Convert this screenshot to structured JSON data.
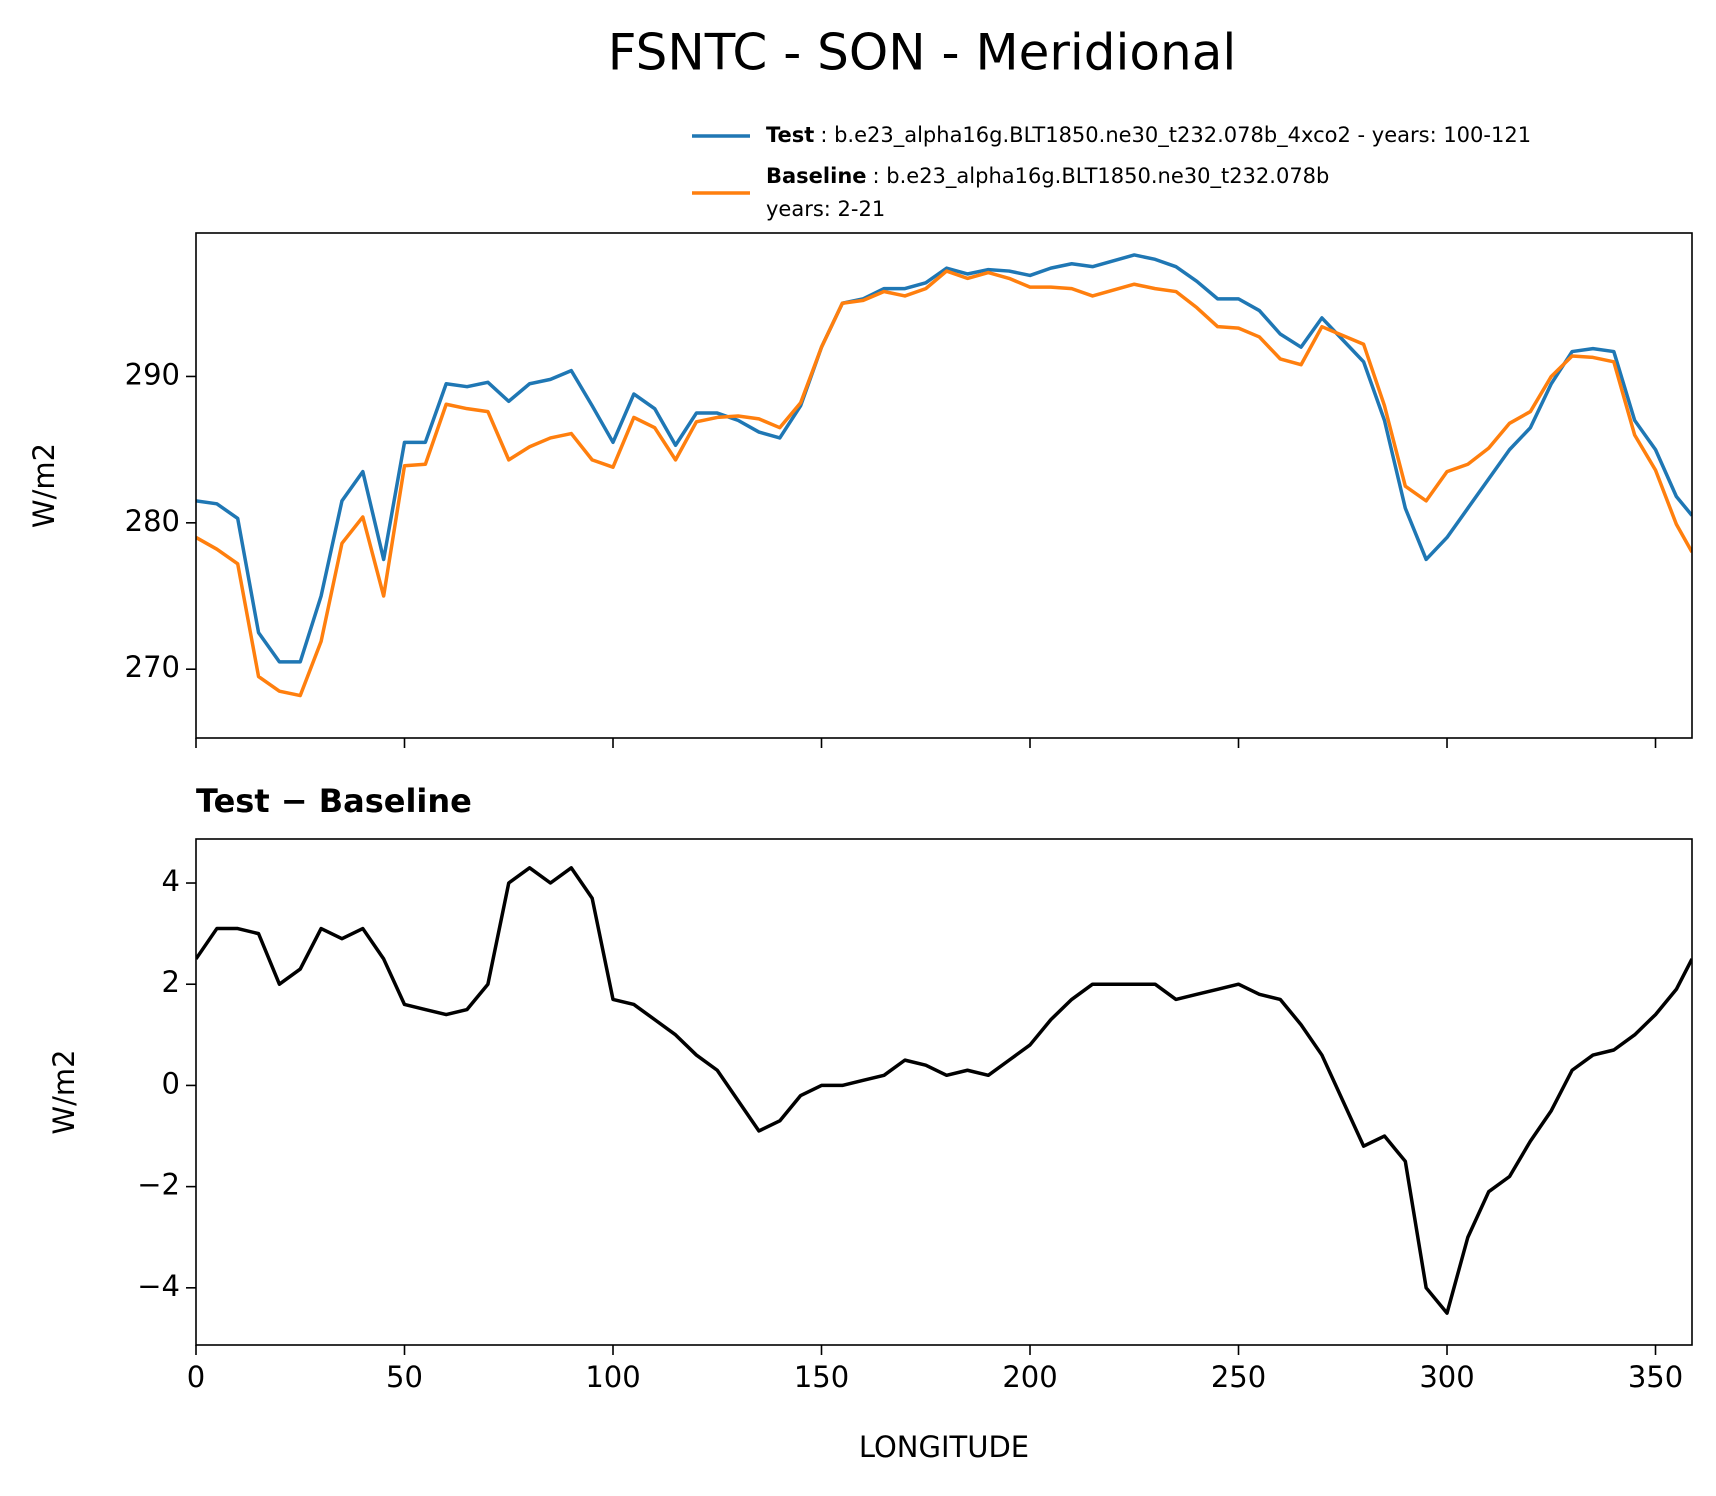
{
  "title": "FSNTC - SON - Meridional",
  "chart_data": [
    {
      "type": "line",
      "ylabel": "W/m2",
      "xlim": [
        0,
        358.75
      ],
      "xticks": [
        0,
        50,
        100,
        150,
        200,
        250,
        300,
        350
      ],
      "ylim": [
        265.3,
        299.8
      ],
      "yticks": [
        270,
        280,
        290
      ],
      "x": [
        0,
        5,
        10,
        15,
        20,
        25,
        30,
        35,
        40,
        45,
        50,
        55,
        60,
        65,
        70,
        75,
        80,
        85,
        90,
        95,
        100,
        105,
        110,
        115,
        120,
        125,
        130,
        135,
        140,
        145,
        150,
        155,
        160,
        165,
        170,
        175,
        180,
        185,
        190,
        195,
        200,
        205,
        210,
        215,
        220,
        225,
        230,
        235,
        240,
        245,
        250,
        255,
        260,
        265,
        270,
        275,
        280,
        285,
        290,
        295,
        300,
        305,
        310,
        315,
        320,
        325,
        330,
        335,
        340,
        345,
        350,
        355,
        358.75
      ],
      "series": [
        {
          "name": "Test",
          "description": [
            ": b.e23_alpha16g.BLT1850.ne30_t232.078b_4xco2 - years: 100-121"
          ],
          "color": "#1f77b4",
          "values": [
            281.5,
            281.3,
            280.3,
            272.5,
            270.5,
            270.5,
            275,
            281.5,
            283.5,
            277.5,
            285.5,
            285.5,
            289.5,
            289.3,
            289.6,
            288.3,
            289.5,
            289.8,
            290.4,
            288,
            285.5,
            288.8,
            287.8,
            285.3,
            287.5,
            287.5,
            287,
            286.2,
            285.8,
            288,
            292,
            295,
            295.3,
            296,
            296,
            296.4,
            297.4,
            297,
            297.3,
            297.2,
            296.9,
            297.4,
            297.7,
            297.5,
            297.9,
            298.3,
            298,
            297.5,
            296.5,
            295.3,
            295.3,
            294.5,
            292.9,
            292,
            294,
            292.5,
            291,
            287,
            281,
            277.5,
            279,
            281,
            283,
            285,
            286.5,
            289.5,
            291.7,
            291.9,
            291.7,
            287,
            285,
            281.8,
            280.5
          ]
        },
        {
          "name": "Baseline",
          "description": [
            ": b.e23_alpha16g.BLT1850.ne30_t232.078b",
            "years: 2-21"
          ],
          "color": "#ff7f0e",
          "values": [
            279,
            278.2,
            277.2,
            269.5,
            268.5,
            268.2,
            271.9,
            278.6,
            280.4,
            275,
            283.9,
            284,
            288.1,
            287.8,
            287.6,
            284.3,
            285.2,
            285.8,
            286.1,
            284.3,
            283.8,
            287.2,
            286.5,
            284.3,
            286.9,
            287.2,
            287.3,
            287.1,
            286.5,
            288.2,
            292,
            295,
            295.2,
            295.8,
            295.5,
            296,
            297.2,
            296.7,
            297.1,
            296.7,
            296.1,
            296.1,
            296,
            295.5,
            295.9,
            296.3,
            296,
            295.8,
            294.7,
            293.4,
            293.3,
            292.7,
            291.2,
            290.8,
            293.4,
            292.8,
            292.2,
            288,
            282.5,
            281.5,
            283.5,
            284,
            285.1,
            286.8,
            287.6,
            290,
            291.4,
            291.3,
            291,
            286,
            283.6,
            279.9,
            278
          ]
        }
      ]
    },
    {
      "type": "line",
      "title": "Test − Baseline",
      "xlabel": "LONGITUDE",
      "ylabel": "W/m2",
      "xlim": [
        0,
        358.75
      ],
      "xticks": [
        0,
        50,
        100,
        150,
        200,
        250,
        300,
        350
      ],
      "ylim": [
        -5.13,
        4.87
      ],
      "yticks": [
        {
          "value": -4,
          "label": "−4"
        },
        {
          "value": -2,
          "label": "−2"
        },
        0,
        2,
        4
      ],
      "x": [
        0,
        5,
        10,
        15,
        20,
        25,
        30,
        35,
        40,
        45,
        50,
        55,
        60,
        65,
        70,
        75,
        80,
        85,
        90,
        95,
        100,
        105,
        110,
        115,
        120,
        125,
        130,
        135,
        140,
        145,
        150,
        155,
        160,
        165,
        170,
        175,
        180,
        185,
        190,
        195,
        200,
        205,
        210,
        215,
        220,
        225,
        230,
        235,
        240,
        245,
        250,
        255,
        260,
        265,
        270,
        275,
        280,
        285,
        290,
        295,
        300,
        305,
        310,
        315,
        320,
        325,
        330,
        335,
        340,
        345,
        350,
        355,
        358.75
      ],
      "series": [
        {
          "color": "#000000",
          "values": [
            2.5,
            3.1,
            3.1,
            3.0,
            2.0,
            2.3,
            3.1,
            2.9,
            3.1,
            2.5,
            1.6,
            1.5,
            1.4,
            1.5,
            2.0,
            4.0,
            4.3,
            4.0,
            4.3,
            3.7,
            1.7,
            1.6,
            1.3,
            1.0,
            0.6,
            0.3,
            -0.3,
            -0.9,
            -0.7,
            -0.2,
            0.0,
            0.0,
            0.1,
            0.2,
            0.5,
            0.4,
            0.2,
            0.3,
            0.2,
            0.5,
            0.8,
            1.3,
            1.7,
            2.0,
            2.0,
            2.0,
            2.0,
            1.7,
            1.8,
            1.9,
            2.0,
            1.8,
            1.7,
            1.2,
            0.6,
            -0.3,
            -1.2,
            -1.0,
            -1.5,
            -4.0,
            -4.5,
            -3.0,
            -2.1,
            -1.8,
            -1.1,
            -0.5,
            0.3,
            0.6,
            0.7,
            1.0,
            1.4,
            1.9,
            2.5
          ]
        }
      ]
    }
  ]
}
